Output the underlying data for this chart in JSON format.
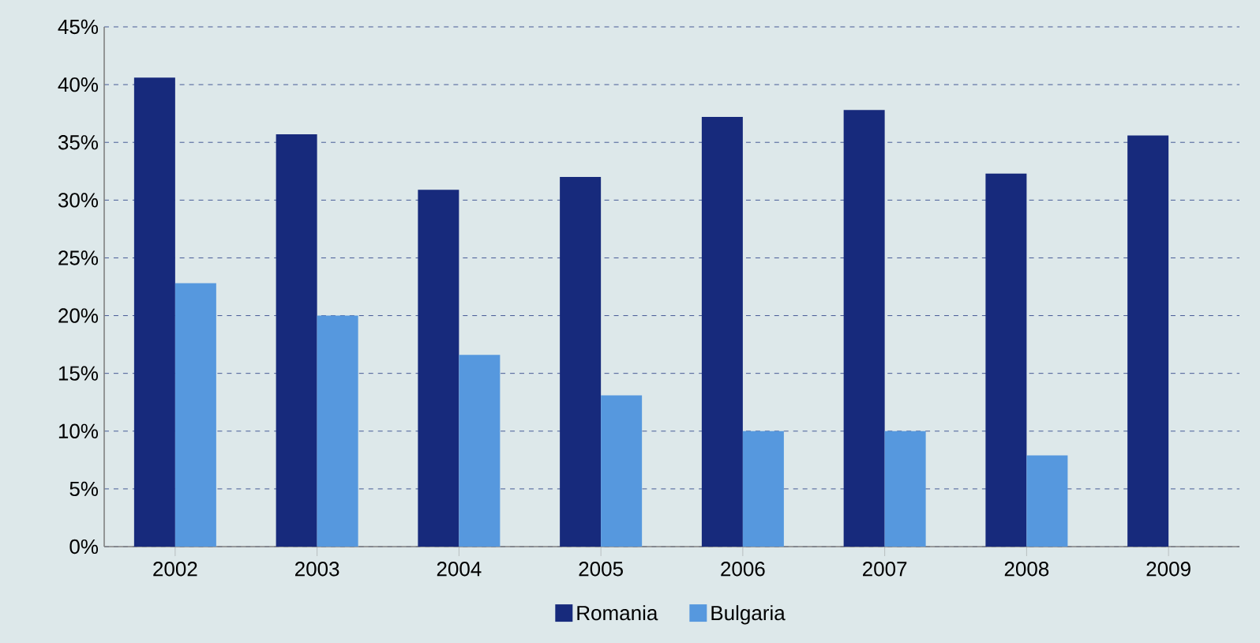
{
  "chart_data": {
    "type": "bar",
    "categories": [
      "2002",
      "2003",
      "2004",
      "2005",
      "2006",
      "2007",
      "2008",
      "2009"
    ],
    "series": [
      {
        "name": "Romania",
        "color": "#172a7c",
        "values": [
          40.6,
          35.7,
          30.9,
          32.0,
          37.2,
          37.8,
          32.3,
          35.6
        ]
      },
      {
        "name": "Bulgaria",
        "color": "#5698de",
        "values": [
          22.8,
          20.0,
          16.6,
          13.1,
          10.0,
          10.0,
          7.9,
          null
        ]
      }
    ],
    "ylim": [
      0,
      45
    ],
    "yticks": [
      {
        "value": 0,
        "label": "0%"
      },
      {
        "value": 5,
        "label": "5%"
      },
      {
        "value": 10,
        "label": "10%"
      },
      {
        "value": 15,
        "label": "15%"
      },
      {
        "value": 20,
        "label": "20%"
      },
      {
        "value": 25,
        "label": "25%"
      },
      {
        "value": 30,
        "label": "30%"
      },
      {
        "value": 35,
        "label": "35%"
      },
      {
        "value": 40,
        "label": "40%"
      },
      {
        "value": 45,
        "label": "45%"
      }
    ],
    "grid": "y",
    "legend": "bottom"
  }
}
